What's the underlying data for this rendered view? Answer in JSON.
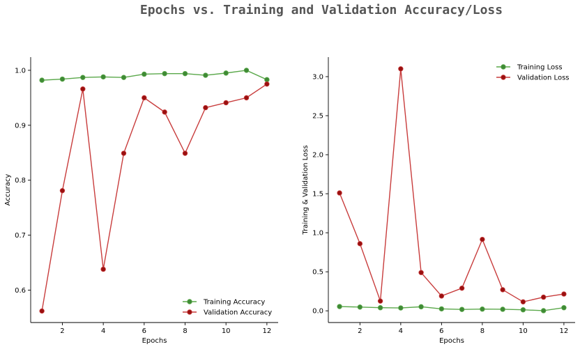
{
  "title": "Epochs vs. Training and Validation Accuracy/Loss",
  "colors": {
    "training": "#5aa84a",
    "training_marker": "#3f8a35",
    "validation": "#c83c3c",
    "validation_marker": "#9a1010",
    "title": "#555555"
  },
  "chart_data": [
    {
      "type": "line",
      "xlabel": "Epochs",
      "ylabel": "Accuracy",
      "x": [
        1,
        2,
        3,
        4,
        5,
        6,
        7,
        8,
        9,
        10,
        11,
        12
      ],
      "xticks": [
        2,
        4,
        6,
        8,
        10,
        12
      ],
      "yticks": [
        0.6,
        0.7,
        0.8,
        0.9,
        1.0
      ],
      "ytick_labels": [
        "0.6",
        "0.7",
        "0.8",
        "0.9",
        "1.0"
      ],
      "xlim": [
        0.45,
        12.55
      ],
      "ylim": [
        0.541,
        1.024
      ],
      "legend_position": "lower-right",
      "series": [
        {
          "name": "Training Accuracy",
          "color_key": "training",
          "values": [
            0.982,
            0.984,
            0.987,
            0.988,
            0.987,
            0.993,
            0.994,
            0.994,
            0.991,
            0.995,
            1.0,
            0.983
          ]
        },
        {
          "name": "Validation Accuracy",
          "color_key": "validation",
          "values": [
            0.562,
            0.781,
            0.966,
            0.638,
            0.849,
            0.95,
            0.924,
            0.849,
            0.932,
            0.941,
            0.95,
            0.975
          ]
        }
      ]
    },
    {
      "type": "line",
      "xlabel": "Epochs",
      "ylabel": "Training & Validation Loss",
      "x": [
        1,
        2,
        3,
        4,
        5,
        6,
        7,
        8,
        9,
        10,
        11,
        12
      ],
      "xticks": [
        2,
        4,
        6,
        8,
        10,
        12
      ],
      "yticks": [
        0.0,
        0.5,
        1.0,
        1.5,
        2.0,
        2.5,
        3.0
      ],
      "ytick_labels": [
        "0.0",
        "0.5",
        "1.0",
        "1.5",
        "2.0",
        "2.5",
        "3.0"
      ],
      "xlim": [
        0.45,
        12.55
      ],
      "ylim": [
        -0.15,
        3.25
      ],
      "legend_position": "upper-right",
      "series": [
        {
          "name": "Training Loss",
          "color_key": "training",
          "values": [
            0.055,
            0.048,
            0.04,
            0.037,
            0.052,
            0.025,
            0.018,
            0.022,
            0.02,
            0.013,
            0.002,
            0.04
          ]
        },
        {
          "name": "Validation Loss",
          "color_key": "validation",
          "values": [
            1.51,
            0.86,
            0.125,
            3.1,
            0.49,
            0.19,
            0.29,
            0.915,
            0.27,
            0.115,
            0.175,
            0.215
          ]
        }
      ]
    }
  ]
}
